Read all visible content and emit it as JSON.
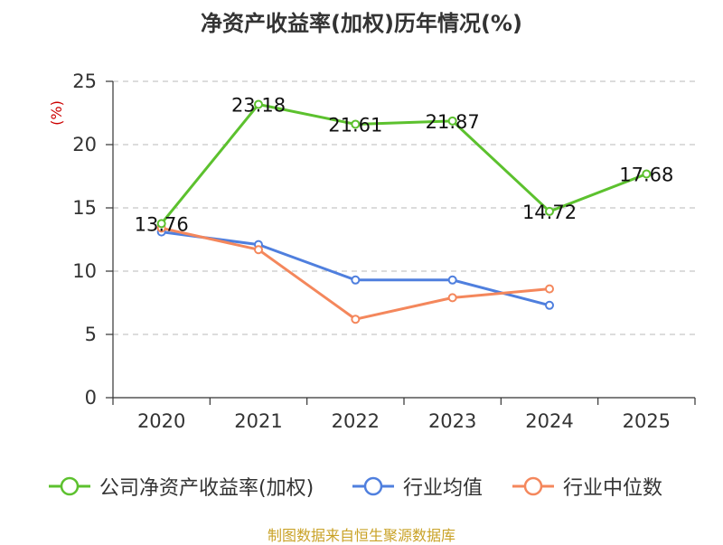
{
  "chart_data": {
    "type": "line",
    "title": "净资产收益率(加权)历年情况(%)",
    "ylabel": "(%)",
    "xlabel": "",
    "categories": [
      "2020",
      "2021",
      "2022",
      "2023",
      "2024",
      "2025"
    ],
    "ylim": [
      0,
      25
    ],
    "yticks": [
      0,
      5,
      10,
      15,
      20,
      25
    ],
    "grid": true,
    "legend_position": "bottom",
    "series": [
      {
        "name": "公司净资产收益率(加权)",
        "color": "#5cc12e",
        "values": [
          13.76,
          23.18,
          21.61,
          21.87,
          14.72,
          17.68
        ],
        "labels": [
          "13.76",
          "23.18",
          "21.61",
          "21.87",
          "14.72",
          "17.68"
        ]
      },
      {
        "name": "行业均值",
        "color": "#4f7fde",
        "values": [
          13.1,
          12.1,
          9.3,
          9.3,
          7.3,
          null
        ]
      },
      {
        "name": "行业中位数",
        "color": "#f4875c",
        "values": [
          13.4,
          11.7,
          6.2,
          7.9,
          8.6,
          null
        ]
      }
    ]
  },
  "source_note": "制图数据来自恒生聚源数据库"
}
